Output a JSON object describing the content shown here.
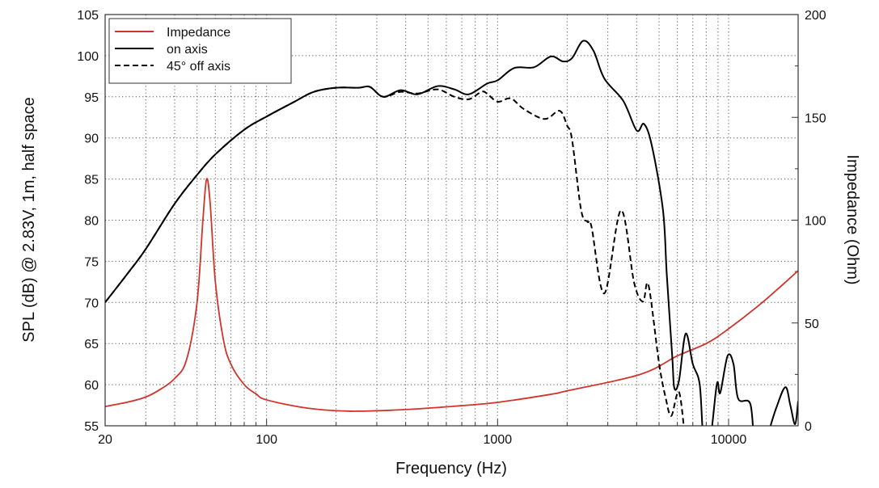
{
  "chart_data": {
    "type": "line",
    "title": "",
    "xlabel": "Frequency (Hz)",
    "ylabel": "SPL (dB) @ 2.83V, 1m, half space",
    "y2label": "Impedance (Ohm)",
    "xscale": "log",
    "xlim": [
      20,
      20000
    ],
    "ylim": [
      55,
      105
    ],
    "y2lim": [
      0,
      200
    ],
    "grid": true,
    "legend_position": "top-left",
    "x_ticks": [
      {
        "value": 20,
        "label": "20"
      },
      {
        "value": 100,
        "label": "100"
      },
      {
        "value": 1000,
        "label": "1000"
      },
      {
        "value": 10000,
        "label": "10000"
      }
    ],
    "y_ticks": [
      55,
      60,
      65,
      70,
      75,
      80,
      85,
      90,
      95,
      100,
      105
    ],
    "y2_ticks": [
      0,
      50,
      100,
      150,
      200
    ],
    "series": [
      {
        "name": "Impedance",
        "axis": "right",
        "color": "#d0342c",
        "dash": "none",
        "x": [
          20,
          25,
          30,
          35,
          40,
          45,
          50,
          53,
          55,
          57,
          60,
          65,
          70,
          80,
          90,
          100,
          150,
          230,
          400,
          700,
          1000,
          1700,
          2000,
          4150,
          6000,
          8000,
          9900,
          14000,
          20000
        ],
        "y": [
          9.4,
          11.5,
          14,
          18,
          23,
          32,
          60,
          100,
          120,
          108,
          70,
          42,
          30,
          20,
          15.5,
          12.6,
          8.6,
          7.1,
          7.9,
          9.8,
          11.4,
          15.3,
          17,
          25,
          34,
          40,
          46.8,
          60,
          75.4
        ]
      },
      {
        "name": "on axis",
        "axis": "left",
        "color": "#000000",
        "dash": "none",
        "x": [
          20,
          25,
          30,
          40,
          50,
          60,
          80,
          100,
          130,
          160,
          200,
          250,
          280,
          320,
          380,
          450,
          550,
          650,
          750,
          900,
          1000,
          1180,
          1440,
          1700,
          1920,
          2100,
          2345,
          2600,
          2900,
          3500,
          4000,
          4300,
          4650,
          5200,
          5400,
          5700,
          5822,
          6100,
          6520,
          7000,
          7500,
          7800,
          8300,
          8900,
          9200,
          9900,
          10500,
          11000,
          12400,
          13000,
          14300,
          16000,
          17600,
          18500,
          19400,
          20000
        ],
        "y": [
          70,
          73.5,
          76.5,
          82,
          85.5,
          88,
          91,
          92.6,
          94.3,
          95.6,
          96.1,
          96.1,
          96.2,
          95.0,
          95.8,
          95.3,
          96.3,
          95.9,
          95.3,
          96.6,
          97.0,
          98.5,
          98.6,
          99.9,
          99.3,
          99.7,
          101.8,
          100.6,
          97.2,
          94.5,
          90.9,
          91.7,
          89.1,
          81.2,
          73.4,
          63.5,
          59.6,
          60.5,
          66.2,
          62.5,
          60,
          55,
          55,
          60.1,
          59,
          63.5,
          62.5,
          58.3,
          57.7,
          55,
          55,
          57,
          59.7,
          57.5,
          55.2,
          58
        ]
      },
      {
        "name": "45° off axis",
        "axis": "left",
        "color": "#000000",
        "dash": "dashed",
        "x": [
          20,
          25,
          30,
          40,
          50,
          60,
          80,
          100,
          130,
          160,
          200,
          250,
          280,
          320,
          380,
          450,
          550,
          650,
          750,
          850,
          900,
          1000,
          1140,
          1300,
          1600,
          1854,
          2000,
          2100,
          2300,
          2450,
          2550,
          2900,
          3420,
          3900,
          4260,
          4500,
          5000,
          5350,
          5650,
          6100,
          6500
        ],
        "y": [
          70,
          73.5,
          76.5,
          82,
          85.5,
          88,
          91,
          92.6,
          94.3,
          95.6,
          96.1,
          96.1,
          96.2,
          95.0,
          95.6,
          95.4,
          95.9,
          95.0,
          94.7,
          95.6,
          95.4,
          94.4,
          94.8,
          93.5,
          92.3,
          93.3,
          91.5,
          89.8,
          81.2,
          79.8,
          79.2,
          71.1,
          81.2,
          72.4,
          70.1,
          72.1,
          62.6,
          58.3,
          56.2,
          59.1,
          55
        ]
      }
    ]
  }
}
